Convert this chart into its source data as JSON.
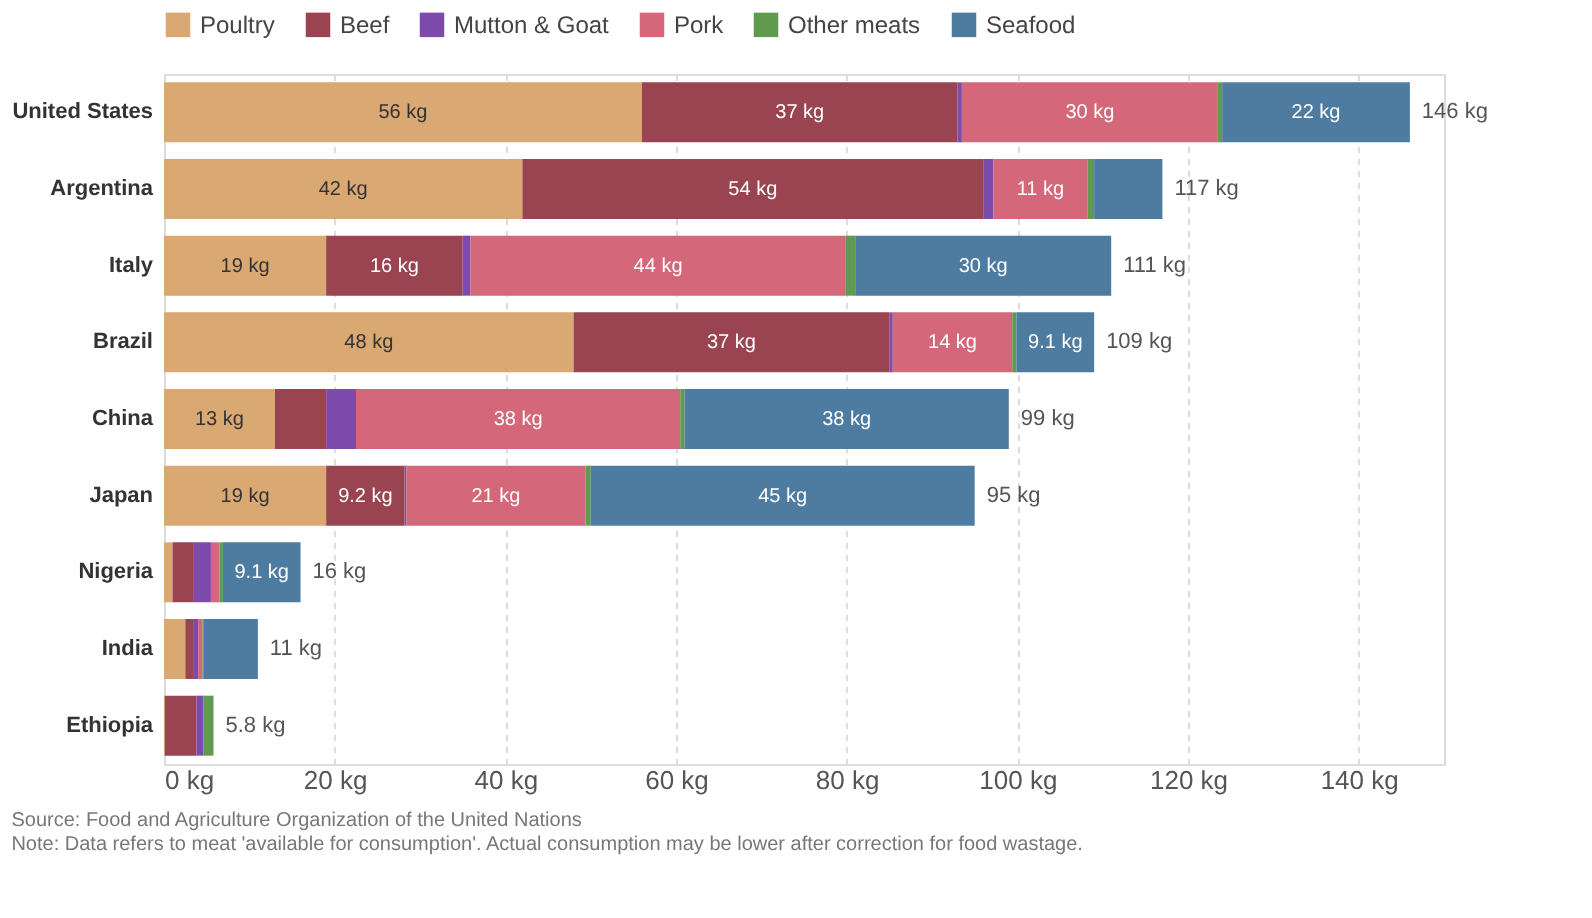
{
  "chart_data": {
    "type": "bar",
    "orientation": "horizontal",
    "stacked": true,
    "categories": [
      "United States",
      "Argentina",
      "Italy",
      "Brazil",
      "China",
      "Japan",
      "Nigeria",
      "India",
      "Ethiopia"
    ],
    "series": [
      {
        "name": "Poultry",
        "color": "#d9a873",
        "values": [
          56,
          42,
          19,
          48,
          13,
          19,
          1,
          2.5,
          0.1
        ],
        "value_labels": [
          "56 kg",
          "42 kg",
          "19 kg",
          "48 kg",
          "13 kg",
          "19 kg",
          null,
          null,
          null
        ]
      },
      {
        "name": "Beef",
        "color": "#9a4351",
        "values": [
          37,
          54,
          16,
          37,
          6,
          9.2,
          2.5,
          1,
          3.7
        ],
        "value_labels": [
          "37 kg",
          "54 kg",
          "16 kg",
          "37 kg",
          null,
          "9.2 kg",
          null,
          null,
          null
        ]
      },
      {
        "name": "Mutton & Goat",
        "color": "#7d4bac",
        "values": [
          0.5,
          1.2,
          0.9,
          0.4,
          3.5,
          0.2,
          2,
          0.5,
          0.8
        ],
        "value_labels": [
          null,
          null,
          null,
          null,
          null,
          null,
          null,
          null,
          null
        ]
      },
      {
        "name": "Pork",
        "color": "#d46779",
        "values": [
          30,
          11,
          44,
          14,
          38,
          21,
          1,
          0.5,
          0
        ],
        "value_labels": [
          "30 kg",
          "11 kg",
          "44 kg",
          "14 kg",
          "38 kg",
          "21 kg",
          null,
          null,
          null
        ]
      },
      {
        "name": "Other meats",
        "color": "#5f9a4f",
        "values": [
          0.5,
          0.8,
          1.1,
          0.5,
          0.5,
          0.6,
          0.4,
          0.1,
          1.2
        ],
        "value_labels": [
          null,
          null,
          null,
          null,
          null,
          null,
          null,
          null,
          null
        ]
      },
      {
        "name": "Seafood",
        "color": "#4e7ca0",
        "values": [
          22,
          8,
          30,
          9.1,
          38,
          45,
          9.1,
          6.4,
          0
        ],
        "value_labels": [
          "22 kg",
          null,
          "30 kg",
          "9.1 kg",
          "38 kg",
          "45 kg",
          "9.1 kg",
          null,
          null
        ]
      }
    ],
    "totals": [
      "146 kg",
      "117 kg",
      "111 kg",
      "109 kg",
      "99 kg",
      "95 kg",
      "16 kg",
      "11 kg",
      "5.8 kg"
    ],
    "xlim": [
      0,
      150
    ],
    "xticks": [
      {
        "value": 0,
        "label": "0 kg"
      },
      {
        "value": 20,
        "label": "20 kg"
      },
      {
        "value": 40,
        "label": "40 kg"
      },
      {
        "value": 60,
        "label": "60 kg"
      },
      {
        "value": 80,
        "label": "80 kg"
      },
      {
        "value": 100,
        "label": "100 kg"
      },
      {
        "value": 120,
        "label": "120 kg"
      },
      {
        "value": 140,
        "label": "140 kg"
      }
    ],
    "grid": "x",
    "legend": "top left",
    "annotations": [
      "Source: Food and Agriculture Organization of the United Nations",
      "Note: Data refers to meat 'available for consumption'. Actual consumption may be lower after correction for food wastage."
    ]
  }
}
